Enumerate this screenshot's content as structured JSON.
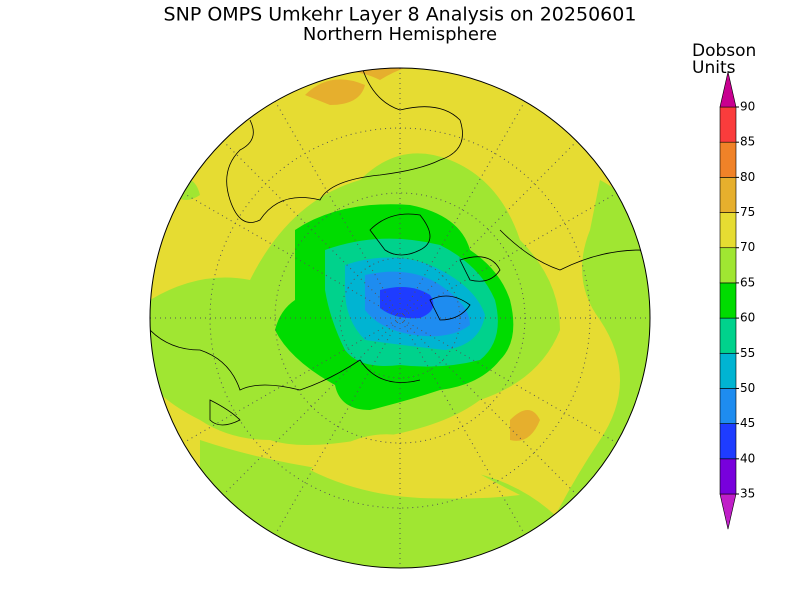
{
  "header": {
    "title": "SNP OMPS Umkehr Layer 8 Analysis on 20250601",
    "subtitle": "Northern Hemisphere"
  },
  "colorbar": {
    "label": [
      "Dobson",
      "Units"
    ],
    "ticks": [
      35,
      40,
      45,
      50,
      55,
      60,
      65,
      70,
      75,
      80,
      85,
      90
    ],
    "colors": [
      "#c01ec8",
      "#7800dc",
      "#1e3cff",
      "#1e8cf0",
      "#00b4d2",
      "#00d28c",
      "#00dc00",
      "#a0e632",
      "#e6dc32",
      "#e6af2d",
      "#f08228",
      "#fa3c3c",
      "#c80090"
    ],
    "extend": "both"
  }
}
